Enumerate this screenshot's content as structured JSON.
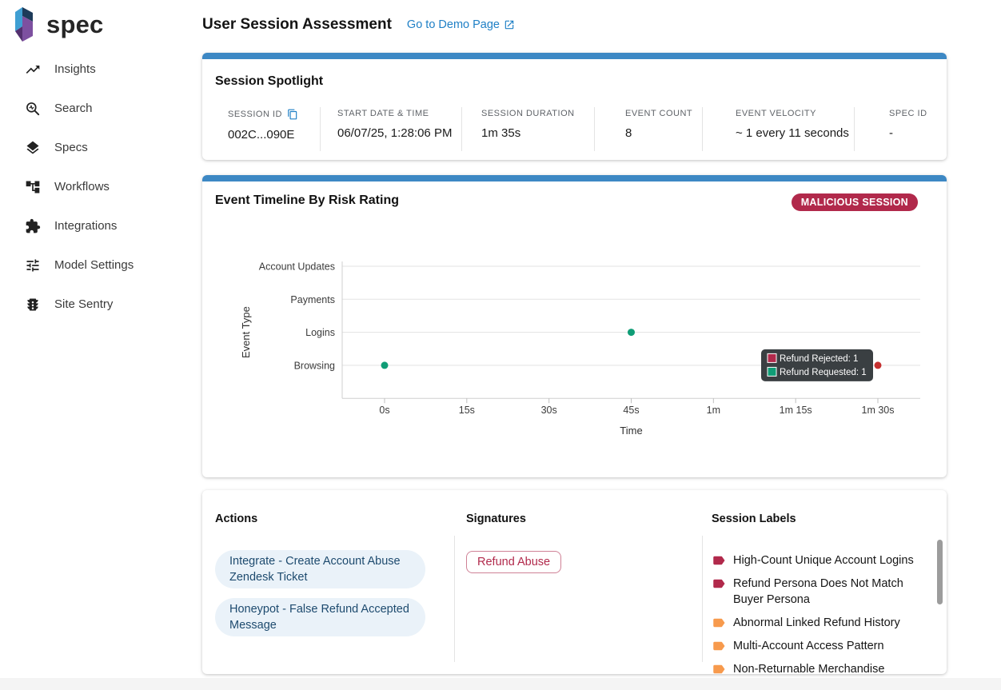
{
  "brand": {
    "name": "spec"
  },
  "sidebar": {
    "items": [
      {
        "label": "Insights",
        "icon": "trending-up-icon"
      },
      {
        "label": "Search",
        "icon": "search-pulse-icon"
      },
      {
        "label": "Specs",
        "icon": "layers-icon"
      },
      {
        "label": "Workflows",
        "icon": "workflow-tree-icon"
      },
      {
        "label": "Integrations",
        "icon": "puzzle-icon"
      },
      {
        "label": "Model Settings",
        "icon": "tune-sliders-icon"
      },
      {
        "label": "Site Sentry",
        "icon": "traffic-light-icon"
      }
    ]
  },
  "header": {
    "title": "User Session Assessment",
    "demo_link_label": "Go to Demo Page"
  },
  "spotlight": {
    "title": "Session Spotlight",
    "fields": [
      {
        "label": "SESSION ID",
        "value": "002C...090E"
      },
      {
        "label": "START DATE & TIME",
        "value": "06/07/25, 1:28:06 PM"
      },
      {
        "label": "SESSION DURATION",
        "value": "1m 35s"
      },
      {
        "label": "EVENT COUNT",
        "value": "8"
      },
      {
        "label": "EVENT VELOCITY",
        "value": "~ 1 every 11 seconds"
      },
      {
        "label": "SPEC ID",
        "value": "-"
      }
    ]
  },
  "timeline": {
    "title": "Event Timeline By Risk Rating",
    "badge": "MALICIOUS SESSION"
  },
  "chart_data": {
    "type": "scatter",
    "title": "Event Timeline By Risk Rating",
    "xlabel": "Time",
    "ylabel": "Event Type",
    "grid": true,
    "legend_position": "none",
    "y_categories": [
      "Account Updates",
      "Payments",
      "Logins",
      "Browsing"
    ],
    "x_ticks": [
      {
        "seconds": 0,
        "label": "0s"
      },
      {
        "seconds": 15,
        "label": "15s"
      },
      {
        "seconds": 30,
        "label": "30s"
      },
      {
        "seconds": 45,
        "label": "45s"
      },
      {
        "seconds": 60,
        "label": "1m"
      },
      {
        "seconds": 75,
        "label": "1m 15s"
      },
      {
        "seconds": 90,
        "label": "1m 30s"
      }
    ],
    "series": [
      {
        "name": "Refund Requested",
        "color": "#0f9d76",
        "points": [
          {
            "seconds": 0,
            "category": "Browsing"
          },
          {
            "seconds": 45,
            "category": "Logins"
          }
        ]
      },
      {
        "name": "Refund Rejected",
        "color": "#c53030",
        "points": [
          {
            "seconds": 90,
            "category": "Browsing"
          }
        ]
      }
    ],
    "tooltip": {
      "anchor": {
        "seconds": 90,
        "category": "Browsing"
      },
      "rows": [
        {
          "swatch_color": "#b1294b",
          "label": "Refund Rejected: 1"
        },
        {
          "swatch_color": "#0f9d76",
          "label": "Refund Requested: 1"
        }
      ]
    }
  },
  "actions": {
    "title": "Actions",
    "items": [
      "Integrate - Create Account Abuse Zendesk Ticket",
      "Honeypot - False Refund Accepted Message"
    ]
  },
  "signatures": {
    "title": "Signatures",
    "items": [
      "Refund Abuse"
    ]
  },
  "session_labels": {
    "title": "Session Labels",
    "items": [
      {
        "label": "High-Count Unique Account Logins",
        "severity": "high",
        "color": "#b1294b"
      },
      {
        "label": "Refund Persona Does Not Match Buyer Persona",
        "severity": "high",
        "color": "#b1294b"
      },
      {
        "label": "Abnormal Linked Refund History",
        "severity": "medium",
        "color": "#f79a4d"
      },
      {
        "label": "Multi-Account Access Pattern",
        "severity": "medium",
        "color": "#f79a4d"
      },
      {
        "label": "Non-Returnable Merchandise",
        "severity": "medium",
        "color": "#f79a4d"
      }
    ]
  },
  "colors": {
    "accent_blue": "#3d88c4",
    "link_blue": "#2080c6",
    "crimson": "#b1294b",
    "green": "#0f9d76",
    "red_dot": "#c53030",
    "orange": "#f79a4d",
    "action_chip_bg": "#eaf2f9",
    "action_chip_text": "#1d4a6e",
    "tooltip_bg": "#3a3f42"
  }
}
